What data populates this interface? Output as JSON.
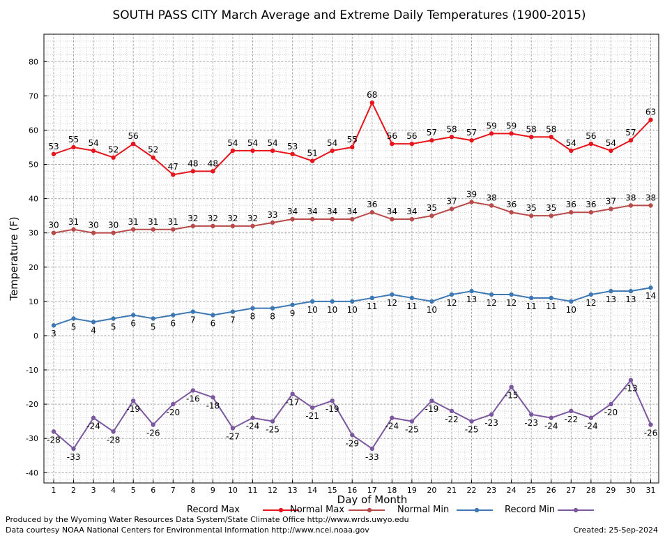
{
  "chart_data": {
    "type": "line",
    "title": "SOUTH PASS CITY March Average and Extreme Daily Temperatures (1900-2015)",
    "xlabel": "Day of Month",
    "ylabel": "Temperature (F)",
    "ylim": [
      -43,
      88
    ],
    "yticks": [
      -40,
      -30,
      -20,
      -10,
      0,
      10,
      20,
      30,
      40,
      50,
      60,
      70,
      80
    ],
    "grid": true,
    "legend_position": "bottom",
    "x": [
      1,
      2,
      3,
      4,
      5,
      6,
      7,
      8,
      9,
      10,
      11,
      12,
      13,
      14,
      15,
      16,
      17,
      18,
      19,
      20,
      21,
      22,
      23,
      24,
      25,
      26,
      27,
      28,
      29,
      30,
      31
    ],
    "series": [
      {
        "name": "Record Max",
        "color": "#e8141c",
        "label_pos": "above",
        "values": [
          53,
          55,
          54,
          52,
          56,
          52,
          47,
          48,
          48,
          54,
          54,
          54,
          53,
          51,
          54,
          55,
          68,
          56,
          56,
          57,
          58,
          57,
          59,
          59,
          58,
          58,
          54,
          56,
          54,
          57,
          63
        ]
      },
      {
        "name": "Normal Max",
        "color": "#b84a4a",
        "label_pos": "above",
        "values": [
          30,
          31,
          30,
          30,
          31,
          31,
          31,
          32,
          32,
          32,
          32,
          33,
          34,
          34,
          34,
          34,
          36,
          34,
          34,
          35,
          37,
          39,
          38,
          36,
          35,
          35,
          36,
          36,
          37,
          38,
          38
        ]
      },
      {
        "name": "Normal Min",
        "color": "#3d78b4",
        "label_pos": "below",
        "values": [
          3,
          5,
          4,
          5,
          6,
          5,
          6,
          7,
          6,
          7,
          8,
          8,
          9,
          10,
          10,
          10,
          11,
          12,
          11,
          10,
          12,
          13,
          12,
          12,
          11,
          11,
          10,
          12,
          13,
          13,
          14
        ]
      },
      {
        "name": "Record Min",
        "color": "#7b57a0",
        "label_pos": "below",
        "values": [
          -28,
          -33,
          -24,
          -28,
          -19,
          -26,
          -20,
          -16,
          -18,
          -27,
          -24,
          -25,
          -17,
          -21,
          -19,
          -29,
          -33,
          -24,
          -25,
          -19,
          -22,
          -25,
          -23,
          -15,
          -23,
          -24,
          -22,
          -24,
          -20,
          -13,
          -26
        ]
      }
    ]
  },
  "footer": {
    "credit_line1": "Produced by the Wyoming Water Resources Data System/State Climate Office http://www.wrds.uwyo.edu",
    "credit_line2": "Data courtesy NOAA National Centers for Environmental Information http://www.ncei.noaa.gov",
    "created": "Created: 25-Sep-2024"
  }
}
